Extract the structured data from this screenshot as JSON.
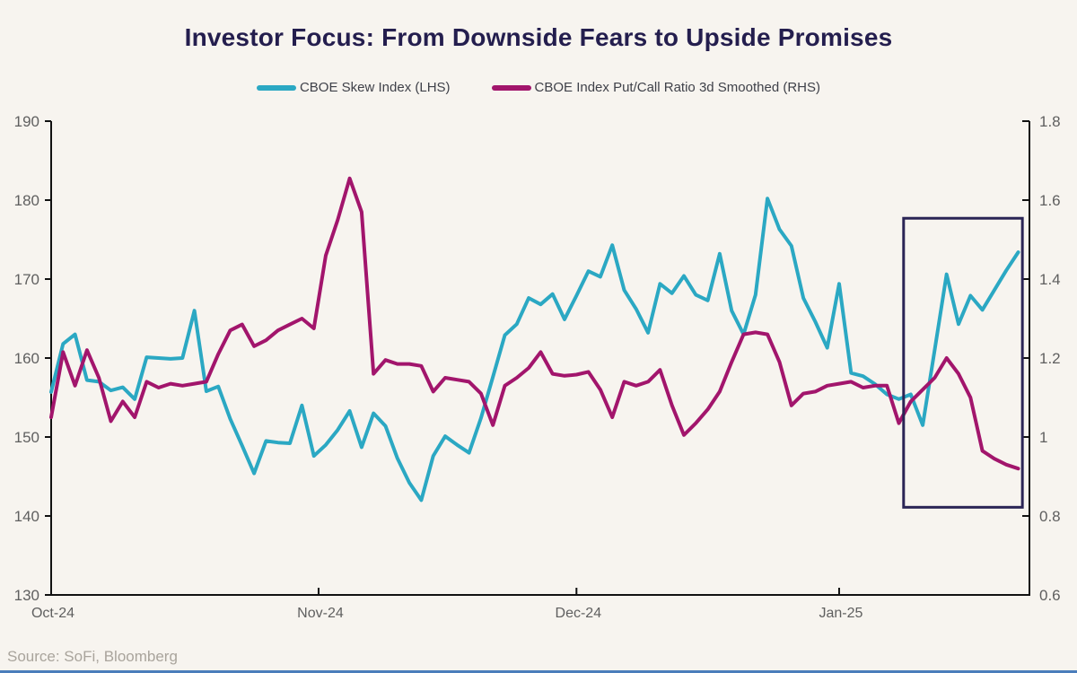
{
  "page": {
    "title": "Investor Focus: From Downside Fears to Upside Promises",
    "source_note": "Source: SoFi, Bloomberg"
  },
  "legend": {
    "items": [
      {
        "label": "CBOE Skew Index (LHS)",
        "color": "#2BA8C3"
      },
      {
        "label": "CBOE Index Put/Call Ratio 3d Smoothed (RHS)",
        "color": "#A2156C"
      }
    ]
  },
  "colors": {
    "background": "#f7f4ef",
    "title": "#241e4e",
    "axis": "#111111",
    "tick_label": "#5f5f5f",
    "skew_line": "#2BA8C3",
    "putcall_line": "#A2156C",
    "highlight_box": "#2a2455",
    "bottom_strip": "#4a7dbb"
  },
  "chart_data": {
    "type": "line",
    "title": "Investor Focus: From Downside Fears to Upside Promises",
    "x_axis": {
      "tick_labels": [
        "Oct-24",
        "Nov-24",
        "Dec-24",
        "Jan-25"
      ],
      "tick_positions": [
        0,
        22.4,
        44,
        66
      ],
      "x_range": [
        0,
        81
      ]
    },
    "left_axis": {
      "side": "left",
      "series_name": "CBOE Skew Index (LHS)",
      "tick_labels": [
        "190",
        "180",
        "170",
        "160",
        "150",
        "140",
        "130"
      ],
      "tick_values": [
        190,
        180,
        170,
        160,
        150,
        140,
        130
      ],
      "range": [
        130,
        190
      ]
    },
    "right_axis": {
      "side": "right",
      "series_name": "CBOE Index Put/Call Ratio 3d Smoothed (RHS)",
      "tick_labels": [
        "1.8",
        "1.6",
        "1.4",
        "1.2",
        "1",
        "0.8",
        "0.6"
      ],
      "tick_values": [
        1.8,
        1.6,
        1.4,
        1.2,
        1.0,
        0.8,
        0.6
      ],
      "range": [
        0.6,
        1.8
      ]
    },
    "series": [
      {
        "name": "CBOE Skew Index (LHS)",
        "axis": "left",
        "color": "#2BA8C3",
        "values": [
          155.7,
          161.8,
          163.0,
          157.2,
          157.0,
          155.9,
          156.3,
          154.8,
          160.1,
          160.0,
          159.9,
          160.0,
          166.0,
          155.8,
          156.4,
          152.3,
          148.9,
          145.4,
          149.5,
          149.3,
          149.2,
          154.0,
          147.6,
          149.0,
          150.9,
          153.3,
          148.7,
          153.0,
          151.4,
          147.3,
          144.2,
          142.0,
          147.6,
          150.1,
          149.0,
          148.0,
          152.4,
          157.6,
          162.9,
          164.3,
          167.6,
          166.8,
          168.1,
          164.9,
          167.9,
          171.0,
          170.3,
          174.3,
          168.6,
          166.2,
          163.2,
          169.4,
          168.2,
          170.4,
          168.0,
          167.3,
          173.2,
          166.0,
          163.0,
          168.0,
          180.2,
          176.3,
          174.2,
          167.6,
          164.6,
          161.3,
          169.4,
          158.1,
          157.7,
          156.7,
          155.4,
          154.8,
          155.4,
          151.5,
          161.0,
          170.6,
          164.3,
          167.9,
          166.1,
          168.6,
          171.1,
          173.4
        ]
      },
      {
        "name": "CBOE Index Put/Call Ratio 3d Smoothed (RHS)",
        "axis": "right",
        "color": "#A2156C",
        "values": [
          1.05,
          1.215,
          1.13,
          1.22,
          1.15,
          1.04,
          1.09,
          1.05,
          1.14,
          1.125,
          1.135,
          1.13,
          1.135,
          1.14,
          1.21,
          1.27,
          1.285,
          1.23,
          1.245,
          1.27,
          1.285,
          1.3,
          1.275,
          1.46,
          1.55,
          1.655,
          1.57,
          1.16,
          1.195,
          1.185,
          1.185,
          1.18,
          1.115,
          1.15,
          1.145,
          1.14,
          1.11,
          1.03,
          1.13,
          1.15,
          1.175,
          1.215,
          1.16,
          1.155,
          1.158,
          1.165,
          1.12,
          1.05,
          1.14,
          1.13,
          1.14,
          1.17,
          1.08,
          1.005,
          1.035,
          1.07,
          1.115,
          1.19,
          1.26,
          1.265,
          1.26,
          1.19,
          1.08,
          1.11,
          1.115,
          1.13,
          1.135,
          1.14,
          1.125,
          1.13,
          1.13,
          1.035,
          1.09,
          1.12,
          1.15,
          1.2,
          1.16,
          1.1,
          0.965,
          0.945,
          0.93,
          0.92
        ]
      }
    ],
    "annotations": {
      "highlight_box": {
        "x_range": [
          71.4,
          81.35
        ],
        "left_axis_value_range": [
          141.1,
          177.7
        ],
        "description": "navy rectangle highlighting recent divergence"
      }
    },
    "grid": false,
    "legend_position": "top-center"
  }
}
